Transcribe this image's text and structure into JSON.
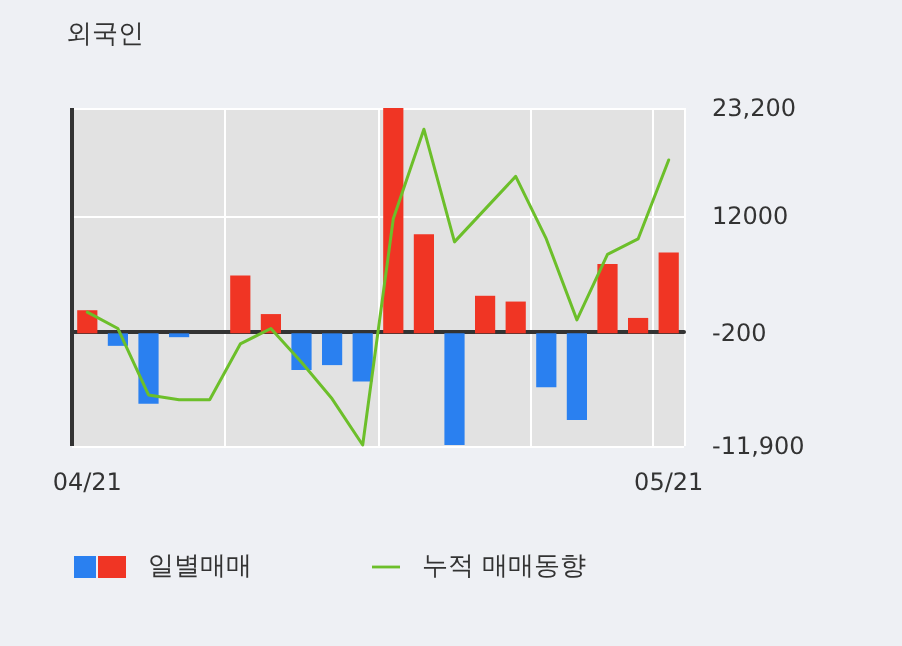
{
  "chart_data": {
    "type": "bar",
    "title": "외국인",
    "categories": [
      "04/21",
      null,
      null,
      null,
      null,
      null,
      null,
      null,
      null,
      null,
      null,
      null,
      null,
      null,
      null,
      null,
      null,
      null,
      null,
      "05/21"
    ],
    "series": [
      {
        "name": "일별매매",
        "colors": [
          "#f03524",
          "#2a80f0",
          "#2a80f0",
          "#2a80f0",
          null,
          "#f03524",
          "#f03524",
          "#2a80f0",
          "#2a80f0",
          "#2a80f0",
          "#f03524",
          "#f03524",
          "#2a80f0",
          "#f03524",
          "#f03524",
          "#2a80f0",
          "#2a80f0",
          "#f03524",
          "#f03524",
          "#f03524"
        ],
        "values": [
          2400,
          -1300,
          -7300,
          -400,
          null,
          6000,
          2000,
          -3800,
          -3300,
          -5000,
          23400,
          10300,
          -11600,
          3900,
          3300,
          -5600,
          -9000,
          7200,
          1600,
          8400
        ],
        "base": [
          -200,
          -200,
          -200,
          -200,
          null,
          -200,
          -200,
          -200,
          -200,
          -200,
          -200,
          -200,
          -200,
          -200,
          -200,
          -200,
          -200,
          -200,
          -200,
          -200
        ]
      },
      {
        "name": "누적 매매동향",
        "type": "line",
        "color": "#6cbf2a",
        "values": [
          2000,
          300,
          -6600,
          -7100,
          -7100,
          -1300,
          300,
          -3200,
          -7000,
          -11800,
          11700,
          21000,
          9300,
          12700,
          16100,
          9600,
          1200,
          8000,
          9600,
          17800
        ]
      }
    ],
    "ylim": [
      -11900,
      23200
    ],
    "yticks": [
      {
        "value": 23200,
        "label": "23,200"
      },
      12000,
      -200,
      {
        "value": -11900,
        "label": "-11,900"
      }
    ],
    "grid": true,
    "legend": "bottom",
    "marker": "none"
  }
}
